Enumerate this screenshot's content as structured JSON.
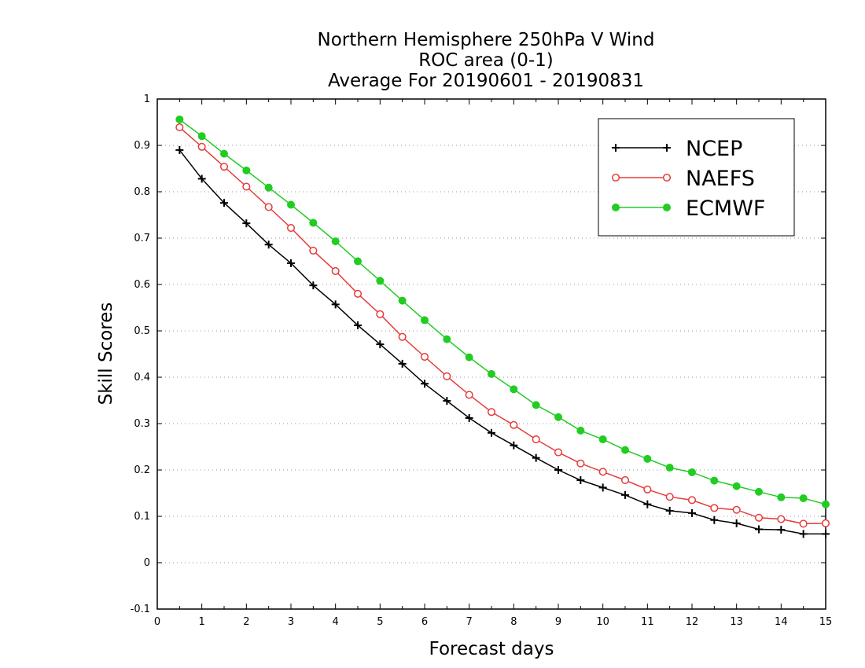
{
  "chart_data": {
    "type": "line",
    "title_lines": [
      "Northern Hemisphere 250hPa V Wind",
      "ROC area (0-1)",
      "Average For 20190601 - 20190831"
    ],
    "xlabel": "Forecast days",
    "ylabel": "Skill Scores",
    "xlim": [
      0,
      15
    ],
    "ylim": [
      -0.1,
      1
    ],
    "x_ticks": [
      "0",
      "1",
      "2",
      "3",
      "4",
      "5",
      "6",
      "7",
      "8",
      "9",
      "10",
      "11",
      "12",
      "13",
      "14",
      "15"
    ],
    "y_ticks": [
      "-0.1",
      "0",
      "0.1",
      "0.2",
      "0.3",
      "0.4",
      "0.5",
      "0.6",
      "0.7",
      "0.8",
      "0.9",
      "1"
    ],
    "y_tick_values": [
      -0.1,
      0,
      0.1,
      0.2,
      0.3,
      0.4,
      0.5,
      0.6,
      0.7,
      0.8,
      0.9,
      1
    ],
    "grid": "dotted-horizontal",
    "legend_position": "top-right",
    "x": [
      0.5,
      1,
      1.5,
      2,
      2.5,
      3,
      3.5,
      4,
      4.5,
      5,
      5.5,
      6,
      6.5,
      7,
      7.5,
      8,
      8.5,
      9,
      9.5,
      10,
      10.5,
      11,
      11.5,
      12,
      12.5,
      13,
      13.5,
      14,
      14.5,
      15
    ],
    "series": [
      {
        "name": "NCEP",
        "color": "#000000",
        "marker": "plus",
        "values": [
          0.89,
          0.828,
          0.776,
          0.732,
          0.686,
          0.646,
          0.598,
          0.557,
          0.512,
          0.471,
          0.429,
          0.386,
          0.349,
          0.312,
          0.28,
          0.253,
          0.226,
          0.2,
          0.178,
          0.162,
          0.146,
          0.126,
          0.112,
          0.107,
          0.092,
          0.085,
          0.072,
          0.071,
          0.062,
          0.062
        ]
      },
      {
        "name": "NAEFS",
        "color": "#e63b3b",
        "marker": "open-circle",
        "values": [
          0.939,
          0.897,
          0.854,
          0.811,
          0.767,
          0.722,
          0.673,
          0.629,
          0.58,
          0.536,
          0.487,
          0.444,
          0.402,
          0.362,
          0.325,
          0.297,
          0.266,
          0.238,
          0.214,
          0.196,
          0.178,
          0.158,
          0.142,
          0.135,
          0.118,
          0.114,
          0.097,
          0.094,
          0.084,
          0.085
        ]
      },
      {
        "name": "ECMWF",
        "color": "#22cc22",
        "marker": "filled-circle",
        "values": [
          0.956,
          0.92,
          0.882,
          0.846,
          0.809,
          0.772,
          0.733,
          0.693,
          0.65,
          0.608,
          0.565,
          0.523,
          0.482,
          0.443,
          0.407,
          0.374,
          0.34,
          0.314,
          0.285,
          0.266,
          0.243,
          0.224,
          0.205,
          0.195,
          0.177,
          0.165,
          0.153,
          0.141,
          0.139,
          0.126
        ]
      }
    ]
  }
}
